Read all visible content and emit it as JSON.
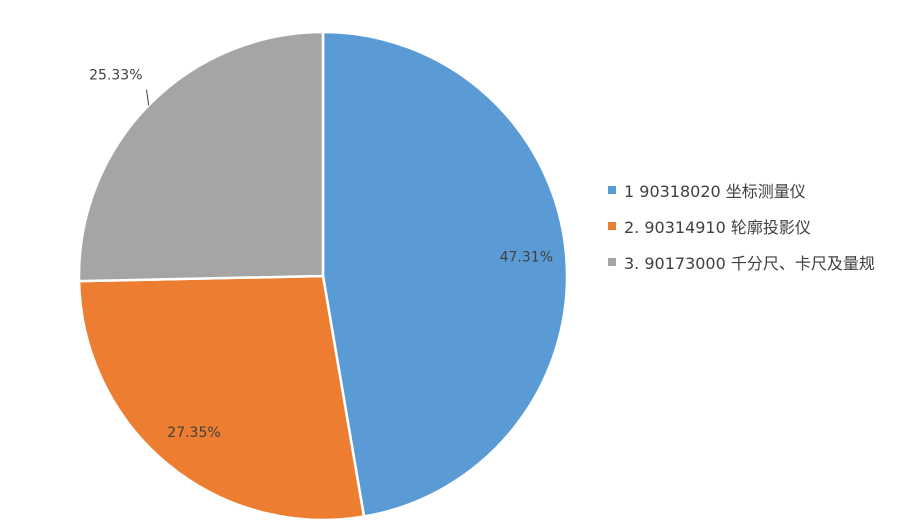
{
  "chart_data": {
    "type": "pie",
    "categories": [
      "1 90318020 坐标测量仪",
      "2. 90314910 轮廓投影仪",
      "3. 90173000 千分尺、卡尺及量规"
    ],
    "values": [
      47.31,
      27.35,
      25.33
    ],
    "data_labels": [
      "47.31%",
      "27.35%",
      "25.33%"
    ],
    "colors": [
      "#5B9BD5",
      "#ED7D31",
      "#A5A5A5"
    ],
    "legend_position": "right"
  }
}
